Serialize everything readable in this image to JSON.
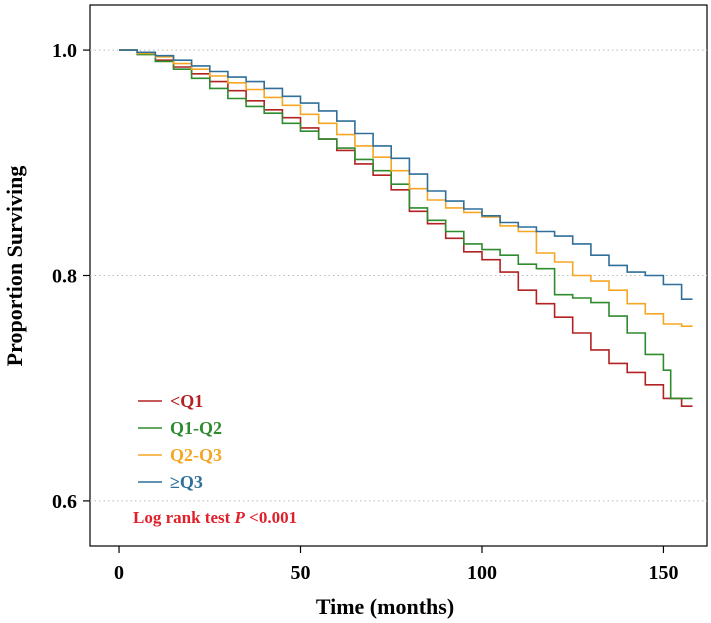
{
  "chart_data": {
    "type": "line",
    "step": true,
    "title": "",
    "xlabel": "Time (months)",
    "ylabel": "Proportion Surviving",
    "xlim": [
      -8,
      162
    ],
    "ylim": [
      0.56,
      1.04
    ],
    "xticks": [
      0,
      50,
      100,
      150
    ],
    "yticks": [
      0.6,
      0.8,
      1.0
    ],
    "xtick_labels": [
      "0",
      "50",
      "100",
      "150"
    ],
    "ytick_labels": [
      "0.6",
      "0.8",
      "1.0"
    ],
    "legend_position": "bottom-left",
    "series": [
      {
        "name": "<Q1",
        "color": "#b22222",
        "x": [
          0,
          5,
          10,
          15,
          20,
          25,
          30,
          35,
          40,
          45,
          50,
          55,
          60,
          65,
          70,
          75,
          80,
          85,
          90,
          95,
          100,
          105,
          110,
          115,
          120,
          125,
          130,
          135,
          140,
          145,
          150,
          155,
          158
        ],
        "y": [
          1.0,
          0.997,
          0.991,
          0.985,
          0.979,
          0.972,
          0.964,
          0.955,
          0.947,
          0.94,
          0.931,
          0.921,
          0.911,
          0.899,
          0.889,
          0.876,
          0.857,
          0.846,
          0.833,
          0.821,
          0.814,
          0.803,
          0.787,
          0.775,
          0.763,
          0.749,
          0.734,
          0.722,
          0.714,
          0.703,
          0.691,
          0.684,
          0.684
        ]
      },
      {
        "name": "Q1-Q2",
        "color": "#2e8b2e",
        "x": [
          0,
          5,
          10,
          15,
          20,
          25,
          30,
          35,
          40,
          45,
          50,
          55,
          60,
          65,
          70,
          75,
          80,
          85,
          90,
          95,
          100,
          105,
          110,
          115,
          120,
          125,
          130,
          135,
          140,
          145,
          150,
          152,
          158
        ],
        "y": [
          1.0,
          0.996,
          0.99,
          0.983,
          0.975,
          0.966,
          0.957,
          0.95,
          0.944,
          0.935,
          0.928,
          0.921,
          0.913,
          0.903,
          0.893,
          0.881,
          0.86,
          0.849,
          0.839,
          0.828,
          0.823,
          0.818,
          0.81,
          0.806,
          0.783,
          0.78,
          0.776,
          0.764,
          0.749,
          0.73,
          0.716,
          0.691,
          0.691
        ]
      },
      {
        "name": "Q2-Q3",
        "color": "#f5a623",
        "x": [
          0,
          5,
          10,
          15,
          20,
          25,
          30,
          35,
          40,
          45,
          50,
          55,
          60,
          65,
          70,
          75,
          80,
          85,
          90,
          95,
          100,
          105,
          110,
          115,
          120,
          125,
          130,
          135,
          140,
          145,
          150,
          155,
          158
        ],
        "y": [
          1.0,
          0.997,
          0.994,
          0.988,
          0.983,
          0.977,
          0.971,
          0.965,
          0.958,
          0.951,
          0.943,
          0.935,
          0.925,
          0.915,
          0.905,
          0.893,
          0.877,
          0.867,
          0.86,
          0.856,
          0.852,
          0.844,
          0.839,
          0.82,
          0.812,
          0.8,
          0.795,
          0.787,
          0.775,
          0.766,
          0.757,
          0.755,
          0.755
        ]
      },
      {
        "name": "≥Q3",
        "color": "#2f6f9a",
        "x": [
          0,
          5,
          10,
          15,
          20,
          25,
          30,
          35,
          40,
          45,
          50,
          55,
          60,
          65,
          70,
          75,
          80,
          85,
          90,
          95,
          100,
          105,
          110,
          115,
          120,
          125,
          130,
          135,
          140,
          145,
          150,
          155,
          158
        ],
        "y": [
          1.0,
          0.998,
          0.995,
          0.991,
          0.986,
          0.981,
          0.976,
          0.972,
          0.966,
          0.959,
          0.953,
          0.946,
          0.937,
          0.926,
          0.915,
          0.904,
          0.89,
          0.875,
          0.866,
          0.859,
          0.853,
          0.847,
          0.843,
          0.839,
          0.835,
          0.828,
          0.818,
          0.809,
          0.803,
          0.8,
          0.792,
          0.779,
          0.779
        ]
      }
    ],
    "annotation": {
      "prefix": "Log rank test ",
      "italic": "P",
      "suffix": " <0.001",
      "color": "#e0202a"
    }
  }
}
